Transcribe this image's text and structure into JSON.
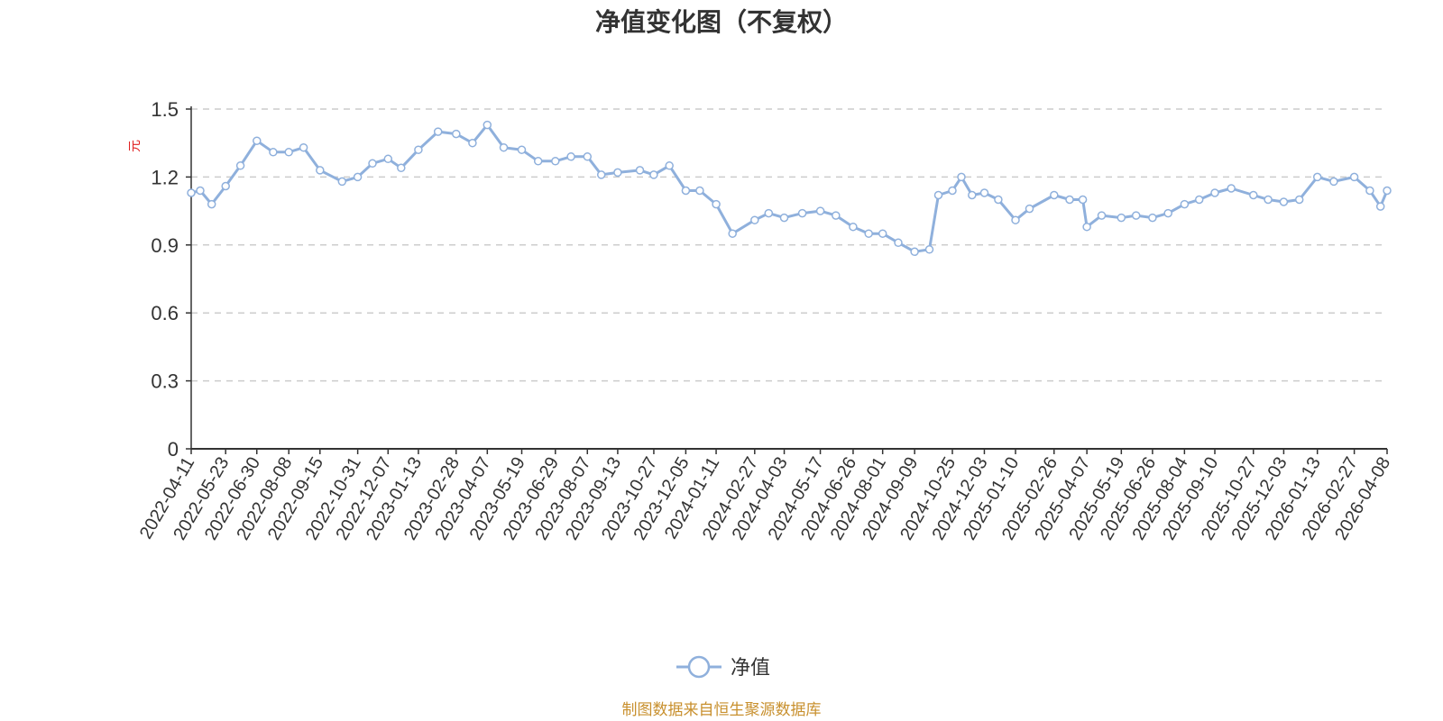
{
  "chart_data": {
    "type": "line",
    "title": "净值变化图（不复权）",
    "y_unit": "元",
    "ylim": [
      0,
      1.5
    ],
    "y_ticks": [
      "0",
      "0.3",
      "0.6",
      "0.9",
      "1.2",
      "1.5"
    ],
    "grid": true,
    "legend_position": "bottom-center",
    "x_ticks": [
      "2022-04-11",
      "2022-05-23",
      "2022-06-30",
      "2022-08-08",
      "2022-09-15",
      "2022-10-31",
      "2022-12-07",
      "2023-01-13",
      "2023-02-28",
      "2023-04-07",
      "2023-05-19",
      "2023-06-29",
      "2023-08-07",
      "2023-09-13",
      "2023-10-27",
      "2023-12-05",
      "2024-01-11",
      "2024-02-27",
      "2024-04-03",
      "2024-05-17",
      "2024-06-26",
      "2024-08-01",
      "2024-09-09",
      "2024-10-25",
      "2024-12-03",
      "2025-01-10",
      "2025-02-26",
      "2025-04-07",
      "2025-05-19",
      "2025-06-26",
      "2025-08-04",
      "2025-09-10",
      "2025-10-27",
      "2025-12-03",
      "2026-01-13",
      "2026-02-27",
      "2026-04-08"
    ],
    "series": [
      {
        "name": "净值",
        "color": "#8fb0dc",
        "x": [
          "2022-04-11",
          "2022-04-22",
          "2022-05-06",
          "2022-05-23",
          "2022-06-10",
          "2022-06-30",
          "2022-07-20",
          "2022-08-08",
          "2022-08-26",
          "2022-09-15",
          "2022-10-12",
          "2022-10-31",
          "2022-11-18",
          "2022-12-07",
          "2022-12-23",
          "2023-01-13",
          "2023-02-06",
          "2023-02-28",
          "2023-03-20",
          "2023-04-07",
          "2023-04-27",
          "2023-05-19",
          "2023-06-08",
          "2023-06-29",
          "2023-07-18",
          "2023-08-07",
          "2023-08-24",
          "2023-09-13",
          "2023-10-10",
          "2023-10-27",
          "2023-11-15",
          "2023-12-05",
          "2023-12-22",
          "2024-01-11",
          "2024-01-31",
          "2024-02-27",
          "2024-03-15",
          "2024-04-03",
          "2024-04-25",
          "2024-05-17",
          "2024-06-05",
          "2024-06-26",
          "2024-07-15",
          "2024-08-01",
          "2024-08-20",
          "2024-09-09",
          "2024-09-27",
          "2024-10-08",
          "2024-10-25",
          "2024-11-05",
          "2024-11-18",
          "2024-12-03",
          "2024-12-20",
          "2025-01-10",
          "2025-01-27",
          "2025-02-26",
          "2025-03-17",
          "2025-04-02",
          "2025-04-07",
          "2025-04-25",
          "2025-05-19",
          "2025-06-06",
          "2025-06-26",
          "2025-07-15",
          "2025-08-04",
          "2025-08-22",
          "2025-09-10",
          "2025-09-30",
          "2025-10-27",
          "2025-11-14",
          "2025-12-03",
          "2025-12-22",
          "2026-01-13",
          "2026-02-02",
          "2026-02-27",
          "2026-03-18",
          "2026-03-31",
          "2026-04-08"
        ],
        "values": [
          1.13,
          1.14,
          1.08,
          1.16,
          1.25,
          1.36,
          1.31,
          1.31,
          1.33,
          1.23,
          1.18,
          1.2,
          1.26,
          1.28,
          1.24,
          1.32,
          1.4,
          1.39,
          1.35,
          1.43,
          1.33,
          1.32,
          1.27,
          1.27,
          1.29,
          1.29,
          1.21,
          1.22,
          1.23,
          1.21,
          1.25,
          1.14,
          1.14,
          1.08,
          0.95,
          1.01,
          1.04,
          1.02,
          1.04,
          1.05,
          1.03,
          0.98,
          0.95,
          0.95,
          0.91,
          0.87,
          0.88,
          1.12,
          1.14,
          1.2,
          1.12,
          1.13,
          1.1,
          1.01,
          1.06,
          1.12,
          1.1,
          1.1,
          0.98,
          1.03,
          1.02,
          1.03,
          1.02,
          1.04,
          1.08,
          1.1,
          1.13,
          1.15,
          1.12,
          1.1,
          1.09,
          1.1,
          1.2,
          1.18,
          1.2,
          1.14,
          1.07,
          1.14
        ]
      }
    ]
  },
  "legend": {
    "label": "净值"
  },
  "footer": {
    "source": "制图数据来自恒生聚源数据库"
  }
}
